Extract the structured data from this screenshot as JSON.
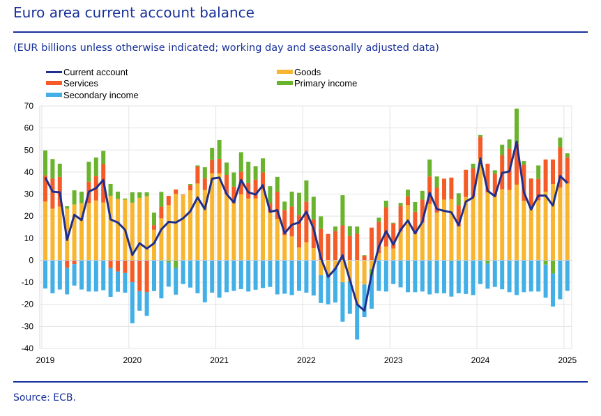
{
  "title": "Euro area current account balance",
  "subtitle": "(EUR billions unless otherwise indicated; working day and seasonally adjusted data)",
  "source": "Source: ECB.",
  "colors": {
    "title": "#17309a",
    "current_account": "#1f2f8c",
    "goods": "#f8b630",
    "services": "#f45b26",
    "primary_income": "#6ab42d",
    "secondary_income": "#42b0e6"
  },
  "legend": [
    {
      "key": "current_account",
      "label": "Current account",
      "kind": "line"
    },
    {
      "key": "goods",
      "label": "Goods",
      "kind": "bar"
    },
    {
      "key": "services",
      "label": "Services",
      "kind": "bar"
    },
    {
      "key": "primary_income",
      "label": "Primary income",
      "kind": "bar"
    },
    {
      "key": "secondary_income",
      "label": "Secondary income",
      "kind": "bar"
    }
  ],
  "chart_data": {
    "type": "bar",
    "stacked": true,
    "title": "Euro area current account balance",
    "xlabel": "",
    "ylabel": "EUR billions",
    "ylim": [
      -40,
      70
    ],
    "yticks": [
      70,
      60,
      50,
      40,
      30,
      20,
      10,
      0,
      -10,
      -20,
      -30,
      -40
    ],
    "xticks": [
      "2019",
      "2020",
      "2021",
      "2022",
      "2023",
      "2024",
      "2025"
    ],
    "start": "2019-01",
    "frequency": "monthly",
    "grid": true,
    "legend_position": "top",
    "series": [
      {
        "name": "Goods",
        "key": "goods",
        "type": "bar",
        "values": [
          26.6,
          23.4,
          24.3,
          23.4,
          25.3,
          25.9,
          25.9,
          27.1,
          26.2,
          29.2,
          27.8,
          27.5,
          26.1,
          28.3,
          29.0,
          13.8,
          19.0,
          25.0,
          30.1,
          29.6,
          31.7,
          34.8,
          31.9,
          39.4,
          39.4,
          30.0,
          25.8,
          29.9,
          28.0,
          28.0,
          32.2,
          21.7,
          18.8,
          11.4,
          10.8,
          5.8,
          8.2,
          5.5,
          -6.8,
          -6.3,
          -3.5,
          -10.0,
          -9.5,
          -20.0,
          -11.0,
          -4.0,
          3.2,
          6.2,
          5.3,
          13.0,
          25.0,
          12.0,
          17.0,
          25.5,
          21.6,
          27.5,
          27.7,
          15.3,
          28.7,
          28.7,
          46.0,
          30.8,
          29.3,
          32.2,
          31.9,
          34.3,
          27.0,
          24.3,
          27.2,
          31.1,
          34.6,
          33.0,
          34.8
        ]
      },
      {
        "name": "Services",
        "key": "services",
        "type": "bar",
        "values": [
          11.9,
          13.7,
          13.5,
          -3.4,
          -1.8,
          0,
          9.7,
          11.1,
          17.4,
          -3.5,
          -5.1,
          -5.8,
          -10.0,
          -14.0,
          -14.5,
          2.1,
          5.3,
          4.2,
          2.0,
          0.2,
          2.3,
          7.7,
          5.2,
          6.0,
          6.6,
          8.7,
          7.6,
          10.2,
          7.0,
          8.6,
          7.6,
          4.2,
          12.3,
          11.3,
          13.5,
          14.6,
          18.4,
          13.0,
          14.3,
          11.9,
          13.2,
          15.8,
          11.0,
          12.0,
          2.0,
          14.8,
          14.2,
          17.8,
          11.4,
          11.6,
          4.0,
          10.0,
          10.5,
          12.5,
          11.4,
          9.5,
          9.8,
          9.7,
          12.3,
          13.0,
          10.0,
          13.0,
          9.9,
          15.5,
          18.7,
          18.7,
          16.3,
          12.7,
          9.7,
          14.6,
          11.1,
          18.2,
          11.9
        ]
      },
      {
        "name": "Primary income",
        "key": "primary_income",
        "type": "bar",
        "values": [
          11.3,
          8.8,
          6.0,
          1.1,
          6.4,
          5.2,
          9.1,
          8.4,
          6.0,
          5.4,
          3.3,
          0.5,
          4.7,
          2.5,
          1.8,
          5.7,
          6.7,
          -1.0,
          -3.5,
          0,
          0.6,
          0.5,
          5.1,
          5.6,
          8.5,
          5.6,
          6.4,
          8.9,
          9.7,
          6.1,
          6.4,
          7.7,
          6.7,
          3.9,
          6.8,
          10.2,
          9.6,
          10.3,
          5.6,
          0,
          2.1,
          13.7,
          4.5,
          3.3,
          0.3,
          -3.0,
          1.9,
          3.0,
          0.3,
          1.4,
          3.0,
          4.4,
          4.0,
          7.7,
          5.0,
          0,
          -0.5,
          5.4,
          -0.3,
          2.1,
          0.8,
          -1.5,
          1.6,
          4.7,
          4.2,
          15.8,
          1.7,
          0.1,
          6.1,
          -2.0,
          -6.0,
          4.4,
          1.8
        ]
      },
      {
        "name": "Secondary income",
        "key": "secondary_income",
        "type": "bar",
        "values": [
          -12.8,
          -15.0,
          -13.3,
          -12.1,
          -9.7,
          -13.3,
          -14.2,
          -14.2,
          -13.6,
          -13.1,
          -9.2,
          -8.9,
          -18.6,
          -8.9,
          -10.7,
          -14.0,
          -17.3,
          -11.0,
          -12.1,
          -10.8,
          -12.4,
          -15.0,
          -19.1,
          -14.7,
          -17.0,
          -14.5,
          -13.9,
          -13.1,
          -14.2,
          -13.4,
          -12.6,
          -12.1,
          -15.5,
          -15.2,
          -15.8,
          -13.9,
          -14.7,
          -16.0,
          -12.6,
          -13.7,
          -15.7,
          -17.9,
          -14.8,
          -16.0,
          -14.8,
          -15.0,
          -13.9,
          -14.2,
          -10.8,
          -12.3,
          -14.5,
          -14.5,
          -14.2,
          -15.5,
          -15.0,
          -15.0,
          -16.0,
          -15.0,
          -15.0,
          -15.8,
          -10.8,
          -11.4,
          -12.1,
          -13.2,
          -14.5,
          -15.8,
          -14.5,
          -14.2,
          -14.2,
          -15.0,
          -15.0,
          -17.7,
          -13.9
        ]
      },
      {
        "name": "Current account",
        "key": "current_account",
        "type": "line",
        "values": [
          37.5,
          31.1,
          30.8,
          9.2,
          20.6,
          18.2,
          31.1,
          32.7,
          36.4,
          18.5,
          17.1,
          13.8,
          2.4,
          7.7,
          5.3,
          7.7,
          14.0,
          17.4,
          17.1,
          19.0,
          22.2,
          28.5,
          23.2,
          37.0,
          37.5,
          30.0,
          26.2,
          36.4,
          30.8,
          29.8,
          34.0,
          22.0,
          22.7,
          12.2,
          16.1,
          17.1,
          22.0,
          14.3,
          1.1,
          -7.5,
          -3.9,
          2.2,
          -8.9,
          -20.0,
          -22.9,
          -6.3,
          6.2,
          13.2,
          7.1,
          13.8,
          18.0,
          12.2,
          17.4,
          30.6,
          23.2,
          22.4,
          21.7,
          15.9,
          26.6,
          28.5,
          46.2,
          31.5,
          29.0,
          39.6,
          40.3,
          53.8,
          30.8,
          23.0,
          29.3,
          29.3,
          24.8,
          38.2,
          35.0
        ]
      }
    ]
  }
}
